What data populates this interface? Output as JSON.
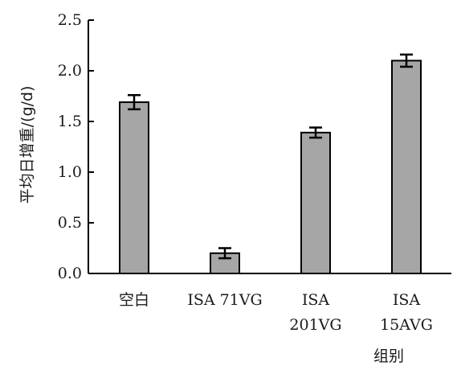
{
  "chart_data": {
    "type": "bar",
    "title": "",
    "xlabel": "组别",
    "ylabel": "平均日增重/(g/d)",
    "ylim": [
      0,
      2.5
    ],
    "yticks": [
      "0.0",
      "0.5",
      "1.0",
      "1.5",
      "2.0",
      "2.5"
    ],
    "categories": [
      [
        "空白"
      ],
      [
        "ISA 71VG"
      ],
      [
        "ISA",
        "201VG"
      ],
      [
        "ISA",
        "15AVG"
      ]
    ],
    "values": [
      1.69,
      0.2,
      1.39,
      2.1
    ],
    "errors": [
      0.07,
      0.05,
      0.05,
      0.06
    ],
    "bar_color": "#a6a6a6",
    "bar_edge_color": "#000000",
    "grid": false,
    "legend": "none"
  }
}
